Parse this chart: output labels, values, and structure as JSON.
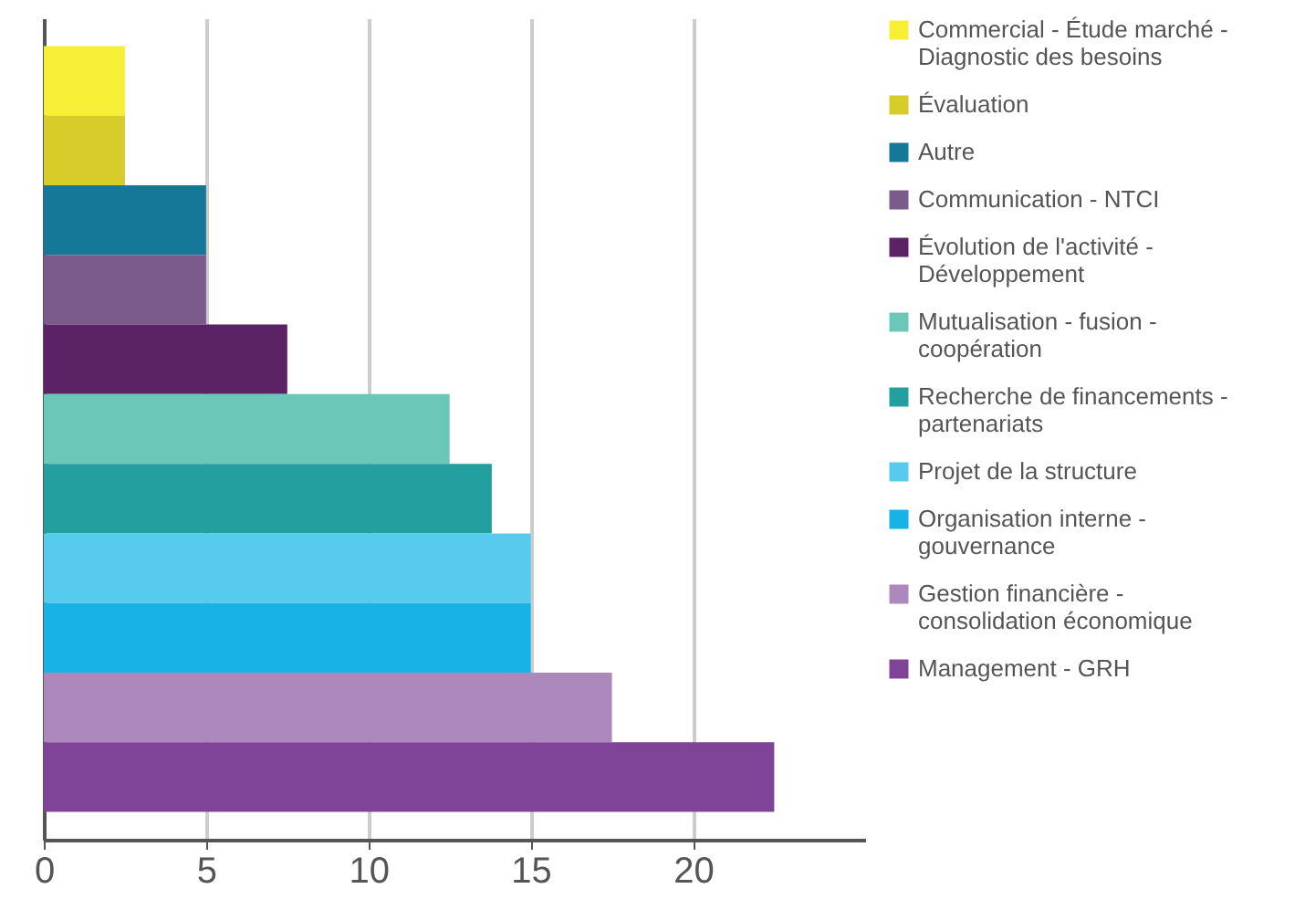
{
  "chart_data": {
    "type": "bar",
    "orientation": "horizontal",
    "categories": [
      null,
      null,
      null,
      null,
      null,
      null,
      null,
      null,
      null,
      null,
      null
    ],
    "series": [
      {
        "name": "Commercial - Étude marché - Diagnostic des besoins",
        "color": "#f7ef35",
        "values": [
          2.5,
          null,
          null,
          null,
          null,
          null,
          null,
          null,
          null,
          null,
          null
        ]
      },
      {
        "name": "Évaluation",
        "color": "#d8cc2a",
        "values": [
          null,
          2.5,
          null,
          null,
          null,
          null,
          null,
          null,
          null,
          null,
          null
        ]
      },
      {
        "name": "Autre",
        "color": "#167898",
        "values": [
          null,
          null,
          5,
          null,
          null,
          null,
          null,
          null,
          null,
          null,
          null
        ]
      },
      {
        "name": "Communication - NTCI",
        "color": "#7b5a8c",
        "values": [
          null,
          null,
          null,
          5,
          null,
          null,
          null,
          null,
          null,
          null,
          null
        ]
      },
      {
        "name": "Évolution de l'activité - Développement",
        "color": "#5b2266",
        "values": [
          null,
          null,
          null,
          null,
          7.5,
          null,
          null,
          null,
          null,
          null,
          null
        ]
      },
      {
        "name": "Mutualisation - fusion - coopération",
        "color": "#6bc8b8",
        "values": [
          null,
          null,
          null,
          null,
          null,
          12.5,
          null,
          null,
          null,
          null,
          null
        ]
      },
      {
        "name": "Recherche de financements - partenariats",
        "color": "#239f9f",
        "values": [
          null,
          null,
          null,
          null,
          null,
          null,
          13.8,
          null,
          null,
          null,
          null
        ]
      },
      {
        "name": "Projet de la structure",
        "color": "#56cbee",
        "values": [
          null,
          null,
          null,
          null,
          null,
          null,
          null,
          15,
          null,
          null,
          null
        ]
      },
      {
        "name": "Organisation interne - gouvernance",
        "color": "#18b2e6",
        "values": [
          null,
          null,
          null,
          null,
          null,
          null,
          null,
          null,
          15,
          null,
          null
        ]
      },
      {
        "name": "Gestion financière - consolidation économique",
        "color": "#ad88bd",
        "values": [
          null,
          null,
          null,
          null,
          null,
          null,
          null,
          null,
          null,
          17.5,
          null
        ]
      },
      {
        "name": "Management - GRH",
        "color": "#7f4497",
        "values": [
          null,
          null,
          null,
          null,
          null,
          null,
          null,
          null,
          null,
          null,
          22.5
        ]
      }
    ],
    "xlim": [
      0,
      25.3
    ],
    "xticks": [
      0,
      5,
      10,
      15,
      20
    ],
    "grid": "x",
    "legend": "right",
    "tick_labels": "x"
  }
}
